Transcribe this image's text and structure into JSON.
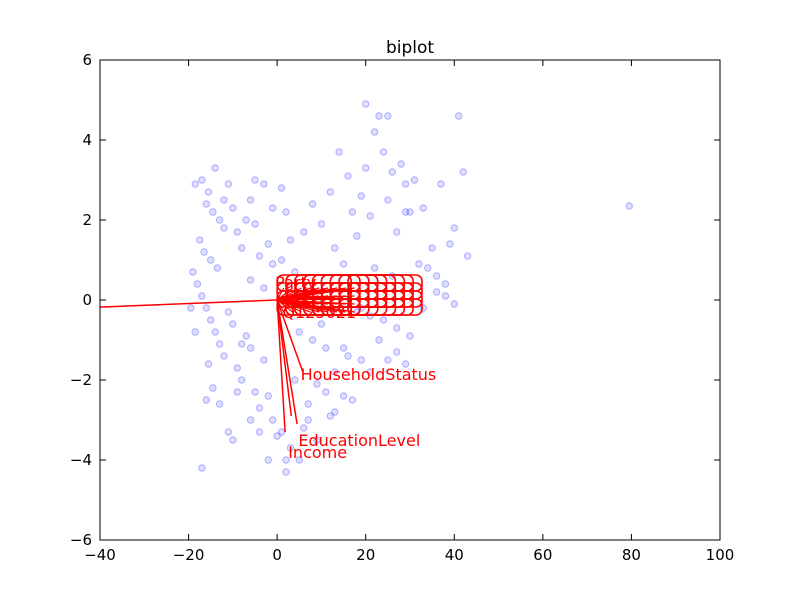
{
  "chart_data": {
    "type": "scatter",
    "title": "biplot",
    "xlabel": "",
    "ylabel": "",
    "xlim": [
      -40,
      100
    ],
    "ylim": [
      -6,
      6
    ],
    "xticks": [
      -40,
      -20,
      0,
      20,
      40,
      60,
      80,
      100
    ],
    "yticks": [
      -6,
      -4,
      -2,
      0,
      2,
      4,
      6
    ],
    "grid": false,
    "colors": {
      "points": "#0000ff",
      "vectors": "#ff0000",
      "axes": "#000000"
    },
    "series": [
      {
        "points": [
          [
            -18.5,
            2.9
          ],
          [
            -17,
            3.0
          ],
          [
            -15.5,
            2.7
          ],
          [
            -16,
            2.4
          ],
          [
            -14.5,
            2.2
          ],
          [
            -13,
            2.0
          ],
          [
            -17.5,
            1.5
          ],
          [
            -16.5,
            1.2
          ],
          [
            -15,
            1.0
          ],
          [
            -13.5,
            0.8
          ],
          [
            -12,
            1.8
          ],
          [
            -11,
            2.9
          ],
          [
            -10,
            2.3
          ],
          [
            -9,
            1.7
          ],
          [
            -8,
            1.3
          ],
          [
            -7,
            2.0
          ],
          [
            -6,
            2.5
          ],
          [
            -5,
            3.0
          ],
          [
            -4,
            1.1
          ],
          [
            -3,
            2.9
          ],
          [
            -2,
            1.4
          ],
          [
            -1,
            0.9
          ],
          [
            1,
            2.8
          ],
          [
            2,
            2.2
          ],
          [
            3,
            1.5
          ],
          [
            4,
            0.7
          ],
          [
            -19,
            0.7
          ],
          [
            -18,
            0.4
          ],
          [
            -17,
            0.1
          ],
          [
            -16,
            -0.2
          ],
          [
            -15,
            -0.5
          ],
          [
            -14,
            -0.8
          ],
          [
            -13,
            -1.1
          ],
          [
            -12,
            -1.4
          ],
          [
            -11,
            -0.3
          ],
          [
            -10,
            -0.6
          ],
          [
            -9,
            -1.7
          ],
          [
            -8,
            -2.0
          ],
          [
            -7,
            -0.9
          ],
          [
            -6,
            -1.2
          ],
          [
            -5,
            -2.3
          ],
          [
            -4,
            -2.7
          ],
          [
            -3,
            -1.5
          ],
          [
            -2,
            -2.4
          ],
          [
            -1,
            -3.0
          ],
          [
            1,
            -3.3
          ],
          [
            2,
            -4.0
          ],
          [
            -17,
            -4.2
          ],
          [
            -16,
            -2.5
          ],
          [
            -10,
            -3.5
          ],
          [
            -9,
            -2.3
          ],
          [
            -8,
            -1.1
          ],
          [
            -19.5,
            -0.2
          ],
          [
            -18.5,
            -0.8
          ],
          [
            -15.5,
            -1.6
          ],
          [
            -14.5,
            -2.2
          ],
          [
            6,
            1.7
          ],
          [
            8,
            2.4
          ],
          [
            10,
            1.9
          ],
          [
            12,
            2.7
          ],
          [
            13,
            1.3
          ],
          [
            14,
            3.7
          ],
          [
            15,
            0.9
          ],
          [
            16,
            3.1
          ],
          [
            17,
            2.2
          ],
          [
            18,
            1.6
          ],
          [
            19,
            2.6
          ],
          [
            20,
            3.3
          ],
          [
            21,
            2.1
          ],
          [
            22,
            4.2
          ],
          [
            23,
            4.6
          ],
          [
            24,
            3.7
          ],
          [
            25,
            2.5
          ],
          [
            26,
            3.2
          ],
          [
            27,
            1.7
          ],
          [
            28,
            3.4
          ],
          [
            29,
            2.9
          ],
          [
            30,
            2.2
          ],
          [
            31,
            3.0
          ],
          [
            32,
            0.9
          ],
          [
            33,
            2.3
          ],
          [
            34,
            0.8
          ],
          [
            35,
            1.3
          ],
          [
            36,
            0.6
          ],
          [
            37,
            2.9
          ],
          [
            38,
            0.4
          ],
          [
            39,
            1.4
          ],
          [
            40,
            1.8
          ],
          [
            41,
            4.6
          ],
          [
            42,
            3.2
          ],
          [
            43,
            1.1
          ],
          [
            20,
            4.9
          ],
          [
            25,
            4.6
          ],
          [
            29,
            2.2
          ],
          [
            26,
            0.6
          ],
          [
            22,
            0.8
          ],
          [
            24,
            -0.5
          ],
          [
            27,
            -1.3
          ],
          [
            30,
            -0.9
          ],
          [
            21,
            -0.4
          ],
          [
            19,
            -1.5
          ],
          [
            18,
            -0.3
          ],
          [
            16,
            -1.4
          ],
          [
            15,
            -2.4
          ],
          [
            13,
            -1.8
          ],
          [
            12,
            -2.9
          ],
          [
            11,
            -1.2
          ],
          [
            10,
            -0.6
          ],
          [
            9,
            -2.1
          ],
          [
            8,
            -1.0
          ],
          [
            7,
            -2.6
          ],
          [
            6,
            -3.2
          ],
          [
            5,
            -0.8
          ],
          [
            4,
            -2.0
          ],
          [
            3,
            -3.7
          ],
          [
            2,
            -4.3
          ],
          [
            5,
            -4.0
          ],
          [
            7,
            -3.0
          ],
          [
            9,
            -3.5
          ],
          [
            11,
            -2.3
          ],
          [
            13,
            -2.8
          ],
          [
            15,
            -1.2
          ],
          [
            17,
            -2.5
          ],
          [
            19,
            -0.2
          ],
          [
            21,
            -1.8
          ],
          [
            23,
            -1.0
          ],
          [
            25,
            -1.5
          ],
          [
            27,
            -0.7
          ],
          [
            29,
            -1.6
          ],
          [
            33,
            -0.2
          ],
          [
            36,
            0.2
          ],
          [
            38,
            0.1
          ],
          [
            40,
            -0.1
          ],
          [
            79.5,
            2.35
          ],
          [
            -14,
            3.3
          ],
          [
            -12,
            2.5
          ],
          [
            -6,
            0.5
          ],
          [
            -5,
            1.9
          ],
          [
            -3,
            0.3
          ],
          [
            -1,
            2.3
          ],
          [
            1,
            1.0
          ],
          [
            -11,
            -3.3
          ],
          [
            -13,
            -2.6
          ],
          [
            -6,
            -3.0
          ],
          [
            -4,
            -3.3
          ],
          [
            -2,
            -4.0
          ],
          [
            0,
            -3.4
          ]
        ]
      }
    ],
    "vectors": [
      {
        "label": "",
        "x": -45,
        "y": -0.2
      },
      {
        "label": "HouseholdStatus",
        "x": 5.8,
        "y": -1.8
      },
      {
        "label": "EducationLevel",
        "x": 4.5,
        "y": -3.1
      },
      {
        "label": "Income",
        "x": 1.8,
        "y": -3.3
      },
      {
        "label": "",
        "x": 3.2,
        "y": -2.9
      }
    ],
    "label_cluster": {
      "top_label": "Party",
      "bottom_label": "Q125021",
      "x_range": [
        0,
        18
      ],
      "y_range": [
        -0.3,
        0.5
      ]
    }
  }
}
